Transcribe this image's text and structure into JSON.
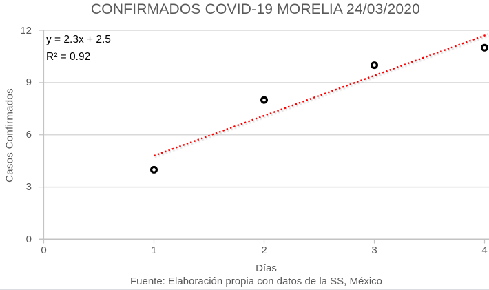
{
  "chart_data": {
    "type": "scatter",
    "title": "CONFIRMADOS COVID-19 MORELIA 24/03/2020",
    "xlabel": "Días",
    "ylabel": "Casos Confirmados",
    "source_note": "Fuente: Elaboración propia con datos de la SS, México",
    "x": [
      1,
      2,
      3,
      4
    ],
    "y": [
      4,
      8,
      10,
      11
    ],
    "xlim": [
      0,
      4
    ],
    "ylim": [
      0,
      12
    ],
    "xticks": [
      0,
      1,
      2,
      3,
      4
    ],
    "yticks": [
      0,
      3,
      6,
      9,
      12
    ],
    "grid": "horizontal",
    "legend": "none",
    "trendline": {
      "equation_label": "y = 2.3x + 2.5",
      "r2_label": "R² = 0.92",
      "slope": 2.3,
      "intercept": 2.5,
      "x_start": 1,
      "x_end": 4.03,
      "style": "dotted"
    },
    "colors": {
      "trendline": "#ff0000",
      "trendline_shadow": "#9a9a9a",
      "marker_stroke": "#000000",
      "marker_fill": "#ffffff",
      "text_gray": "#595959",
      "gridline": "#d9d9d9",
      "axis": "#c3c3c3"
    }
  }
}
